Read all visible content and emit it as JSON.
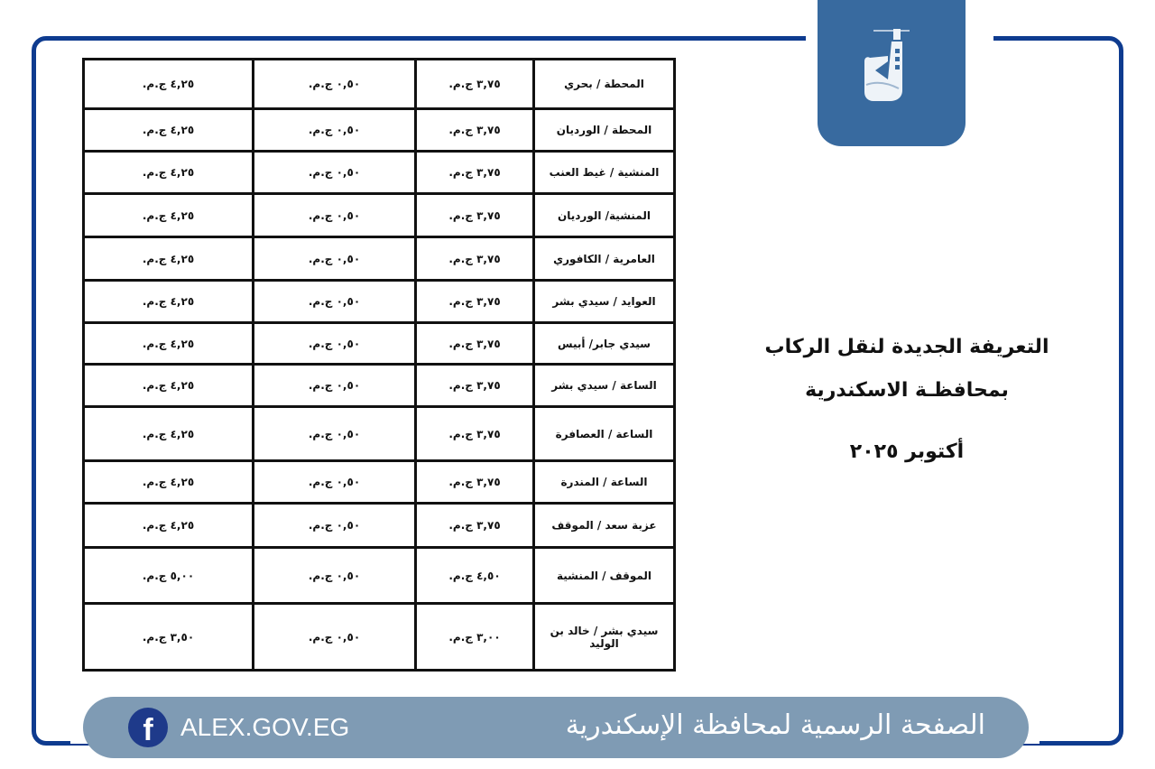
{
  "header": {
    "logo_icon": "alexandria-lighthouse-logo-icon"
  },
  "title": {
    "line1": "التعريفة الجديدة لنقل الركاب",
    "line2": "بمحافظـة الاسكندرية",
    "date": "أكتوبر ٢٠٢٥"
  },
  "table": {
    "rows": [
      {
        "route": "المحطة / بحري",
        "c2": "٣,٧٥ ج.م.",
        "c3": "٠,٥٠ ج.م.",
        "c4": "٤,٢٥ ج.م."
      },
      {
        "route": "المحطة / الورديان",
        "c2": "٣,٧٥ ج.م.",
        "c3": "٠,٥٠ ج.م.",
        "c4": "٤,٢٥ ج.م."
      },
      {
        "route": "المنشية / غيط العنب",
        "c2": "٣,٧٥ ج.م.",
        "c3": "٠,٥٠ ج.م.",
        "c4": "٤,٢٥ ج.م."
      },
      {
        "route": "المنشية/ الورديان",
        "c2": "٣,٧٥ ج.م.",
        "c3": "٠,٥٠ ج.م.",
        "c4": "٤,٢٥ ج.م."
      },
      {
        "route": "العامرية / الكافوري",
        "c2": "٣,٧٥ ج.م.",
        "c3": "٠,٥٠ ج.م.",
        "c4": "٤,٢٥ ج.م."
      },
      {
        "route": "العوايد / سيدي بشر",
        "c2": "٣,٧٥ ج.م.",
        "c3": "٠,٥٠ ج.م.",
        "c4": "٤,٢٥ ج.م."
      },
      {
        "route": "سيدي جابر/ أبيس",
        "c2": "٣,٧٥ ج.م.",
        "c3": "٠,٥٠ ج.م.",
        "c4": "٤,٢٥ ج.م."
      },
      {
        "route": "الساعة / سيدي بشر",
        "c2": "٣,٧٥ ج.م.",
        "c3": "٠,٥٠ ج.م.",
        "c4": "٤,٢٥ ج.م."
      },
      {
        "route": "الساعة / العصافرة",
        "c2": "٣,٧٥ ج.م.",
        "c3": "٠,٥٠ ج.م.",
        "c4": "٤,٢٥ ج.م."
      },
      {
        "route": "الساعة / المندرة",
        "c2": "٣,٧٥ ج.م.",
        "c3": "٠,٥٠ ج.م.",
        "c4": "٤,٢٥ ج.م."
      },
      {
        "route": "عزبة سعد / الموقف",
        "c2": "٣,٧٥ ج.م.",
        "c3": "٠,٥٠ ج.م.",
        "c4": "٤,٢٥ ج.م."
      },
      {
        "route": "الموقف / المنشية",
        "c2": "٤,٥٠ ج.م.",
        "c3": "٠,٥٠ ج.م.",
        "c4": "٥,٠٠ ج.م."
      },
      {
        "route": "سيدي بشر / خالد بن الوليد",
        "c2": "٣,٠٠ ج.م.",
        "c3": "٠,٥٠ ج.م.",
        "c4": "٣,٥٠ ج.م."
      }
    ]
  },
  "footer": {
    "facebook_icon": "facebook-icon",
    "site": "ALEX.GOV.EG",
    "official_page": "الصفحة الرسمية لمحافظة الإسكندرية"
  },
  "colors": {
    "frame": "#0e3b8f",
    "logo_bg": "#386a9f",
    "footer_bg": "#7f9bb4"
  }
}
